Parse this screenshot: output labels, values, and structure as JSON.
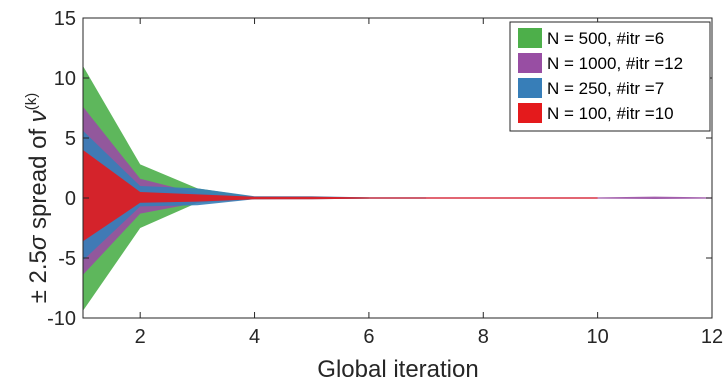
{
  "chart_data": {
    "type": "area",
    "xlabel": "Global iteration",
    "ylabel": {
      "prefix": "± 2.5",
      "sigma": "σ",
      "middle": " spread of ",
      "nu": "ν",
      "superscript": "(k)"
    },
    "xlim": [
      1,
      12
    ],
    "ylim": [
      -10,
      15
    ],
    "xticks": [
      2,
      4,
      6,
      8,
      10,
      12
    ],
    "yticks": [
      -10,
      -5,
      0,
      5,
      10,
      15
    ],
    "grid": false,
    "legend_position": "top-right",
    "series": [
      {
        "name": "N = 500, #itr =6",
        "color": "#4daf4a",
        "x": [
          1,
          2,
          3,
          4,
          5,
          6
        ],
        "upper": [
          11.0,
          2.8,
          0.8,
          0.1,
          0.05,
          0.05
        ],
        "lower": [
          -9.4,
          -2.5,
          -0.4,
          -0.1,
          -0.05,
          -0.05
        ]
      },
      {
        "name": "N = 1000, #itr =12",
        "color": "#984ea3",
        "x": [
          1,
          2,
          3,
          4,
          5,
          6,
          7,
          8,
          9,
          10,
          11,
          12
        ],
        "upper": [
          7.6,
          1.6,
          0.4,
          0.1,
          0.08,
          0.05,
          0.05,
          0.05,
          0.05,
          0.05,
          0.12,
          0.05
        ],
        "lower": [
          -6.4,
          -1.3,
          -0.4,
          -0.1,
          -0.08,
          -0.05,
          -0.05,
          -0.05,
          -0.05,
          -0.05,
          -0.08,
          -0.05
        ]
      },
      {
        "name": "N = 250, #itr =7",
        "color": "#377eb8",
        "x": [
          1,
          2,
          3,
          4,
          5,
          6,
          7
        ],
        "upper": [
          5.6,
          1.0,
          0.8,
          0.15,
          0.15,
          0.05,
          0.05
        ],
        "lower": [
          -5.2,
          -0.7,
          -0.6,
          -0.1,
          -0.1,
          -0.05,
          -0.05
        ]
      },
      {
        "name": "N = 100, #itr =10",
        "color": "#e41a1c",
        "x": [
          1,
          2,
          3,
          4,
          5,
          6,
          7,
          8,
          9,
          10
        ],
        "upper": [
          4.0,
          0.5,
          0.3,
          0.1,
          0.1,
          0.05,
          0.05,
          0.05,
          0.05,
          0.05
        ],
        "lower": [
          -3.6,
          -0.4,
          -0.3,
          -0.1,
          -0.1,
          -0.05,
          -0.05,
          -0.05,
          -0.05,
          -0.05
        ]
      }
    ]
  }
}
